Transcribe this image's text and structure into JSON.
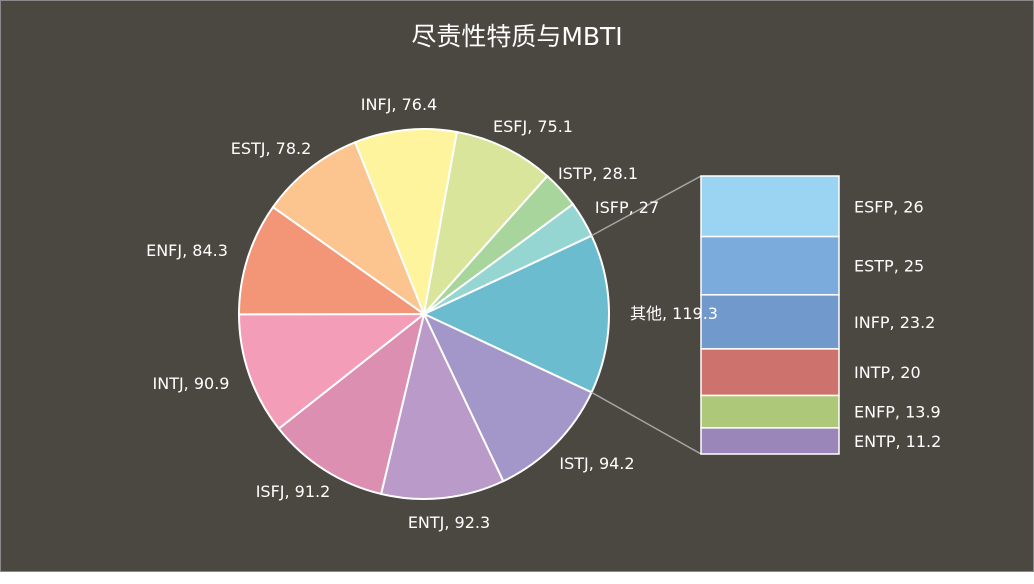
{
  "chart_data": {
    "type": "pie-of-bar",
    "title": "尽责性特质与MBTI",
    "pie": [
      {
        "label": "其他",
        "value": 119.3,
        "color": "#6cbcd0"
      },
      {
        "label": "ISTJ",
        "value": 94.2,
        "color": "#a396c8"
      },
      {
        "label": "ENTJ",
        "value": 92.3,
        "color": "#b99ac9"
      },
      {
        "label": "ISFJ",
        "value": 91.2,
        "color": "#dc8fb0"
      },
      {
        "label": "INTJ",
        "value": 90.9,
        "color": "#f39db9"
      },
      {
        "label": "ENFJ",
        "value": 84.3,
        "color": "#f29677"
      },
      {
        "label": "ESTJ",
        "value": 78.2,
        "color": "#fcc48e"
      },
      {
        "label": "INFJ",
        "value": 76.4,
        "color": "#fdf49d"
      },
      {
        "label": "ESFJ",
        "value": 75.1,
        "color": "#d8e59a"
      },
      {
        "label": "ISTP",
        "value": 28.1,
        "color": "#a8d59b"
      },
      {
        "label": "ISFP",
        "value": 27,
        "color": "#95d5d2"
      }
    ],
    "bar": [
      {
        "label": "ESFP",
        "value": 26,
        "color": "#9bd3f2"
      },
      {
        "label": "ESTP",
        "value": 25,
        "color": "#7aabdc"
      },
      {
        "label": "INFP",
        "value": 23.2,
        "color": "#7199cb"
      },
      {
        "label": "INTP",
        "value": 20,
        "color": "#cd726d"
      },
      {
        "label": "ENFP",
        "value": 13.9,
        "color": "#adc878"
      },
      {
        "label": "ENTP",
        "value": 11.2,
        "color": "#9a86b8"
      }
    ],
    "background": "#4b4741"
  }
}
